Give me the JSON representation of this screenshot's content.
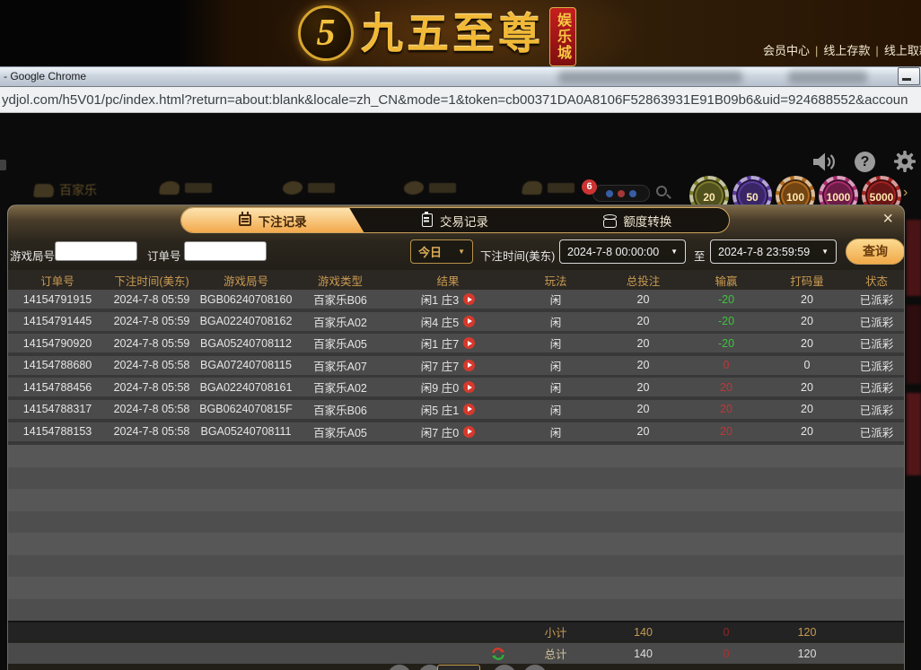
{
  "browser": {
    "window_title": "- Google Chrome",
    "url": "ydjol.com/h5V01/pc/index.html?return=about:blank&locale=zh_CN&mode=1&token=cb00371DA0A8106F52863931E91B09b6&uid=924688552&accoun"
  },
  "site": {
    "logo_mark": "5",
    "logo_text": "九五至尊",
    "logo_badge": "娱乐城",
    "nav_links": [
      "会员中心",
      "线上存款",
      "线上取款"
    ],
    "lobby_first_item": "百家乐",
    "notice_badge": "6"
  },
  "chips": [
    {
      "label": "20",
      "color": "#7d7d2e"
    },
    {
      "label": "50",
      "color": "#5a3a9e"
    },
    {
      "label": "100",
      "color": "#b06a1e"
    },
    {
      "label": "1000",
      "color": "#a82a6e"
    },
    {
      "label": "5000",
      "color": "#a32222"
    }
  ],
  "modal": {
    "tabs": [
      {
        "label": "下注记录",
        "icon": "calendar-icon",
        "active": true
      },
      {
        "label": "交易记录",
        "icon": "clipboard-icon",
        "active": false
      },
      {
        "label": "额度转换",
        "icon": "coins-icon",
        "active": false
      }
    ],
    "close_label": "×",
    "filters": {
      "game_round_label": "游戏局号",
      "order_label": "订单号",
      "quick_range": "今日",
      "bet_time_label": "下注时间(美东)",
      "from_value": "2024-7-8 00:00:00",
      "to_label": "至",
      "to_value": "2024-7-8 23:59:59",
      "search_label": "查询"
    },
    "table": {
      "headers": [
        "订单号",
        "下注时间(美东)",
        "游戏局号",
        "游戏类型",
        "结果",
        "玩法",
        "总投注",
        "输赢",
        "打码量",
        "状态"
      ],
      "rows": [
        {
          "order_id": "14154791915",
          "bet_time": "2024-7-8 05:59",
          "round_id": "BGB06240708160",
          "game_type": "百家乐B06",
          "result": "闲1 庄3",
          "play": "闲",
          "total_bet": "20",
          "win_loss": "-20",
          "turnover": "20",
          "status": "已派彩"
        },
        {
          "order_id": "14154791445",
          "bet_time": "2024-7-8 05:59",
          "round_id": "BGA02240708162",
          "game_type": "百家乐A02",
          "result": "闲4 庄5",
          "play": "闲",
          "total_bet": "20",
          "win_loss": "-20",
          "turnover": "20",
          "status": "已派彩"
        },
        {
          "order_id": "14154790920",
          "bet_time": "2024-7-8 05:59",
          "round_id": "BGA05240708112",
          "game_type": "百家乐A05",
          "result": "闲1 庄7",
          "play": "闲",
          "total_bet": "20",
          "win_loss": "-20",
          "turnover": "20",
          "status": "已派彩"
        },
        {
          "order_id": "14154788680",
          "bet_time": "2024-7-8 05:58",
          "round_id": "BGA07240708115",
          "game_type": "百家乐A07",
          "result": "闲7 庄7",
          "play": "闲",
          "total_bet": "20",
          "win_loss": "0",
          "turnover": "0",
          "status": "已派彩"
        },
        {
          "order_id": "14154788456",
          "bet_time": "2024-7-8 05:58",
          "round_id": "BGA02240708161",
          "game_type": "百家乐A02",
          "result": "闲9 庄0",
          "play": "闲",
          "total_bet": "20",
          "win_loss": "20",
          "turnover": "20",
          "status": "已派彩"
        },
        {
          "order_id": "14154788317",
          "bet_time": "2024-7-8 05:58",
          "round_id": "BGB0624070815F",
          "game_type": "百家乐B06",
          "result": "闲5 庄1",
          "play": "闲",
          "total_bet": "20",
          "win_loss": "20",
          "turnover": "20",
          "status": "已派彩"
        },
        {
          "order_id": "14154788153",
          "bet_time": "2024-7-8 05:58",
          "round_id": "BGA05240708111",
          "game_type": "百家乐A05",
          "result": "闲7 庄0",
          "play": "闲",
          "total_bet": "20",
          "win_loss": "20",
          "turnover": "20",
          "status": "已派彩"
        }
      ],
      "subtotal": {
        "label": "小计",
        "total_bet": "140",
        "win_loss": "0",
        "turnover": "120"
      },
      "total": {
        "label": "总计",
        "total_bet": "140",
        "win_loss": "0",
        "turnover": "120"
      }
    }
  },
  "colors": {
    "accent_gold": "#c89a52",
    "win_negative_green": "#3ec43e",
    "win_positive_red": "#c03636",
    "active_tab_gradient_top": "#fde4b0",
    "active_tab_gradient_bottom": "#f2a94c"
  }
}
